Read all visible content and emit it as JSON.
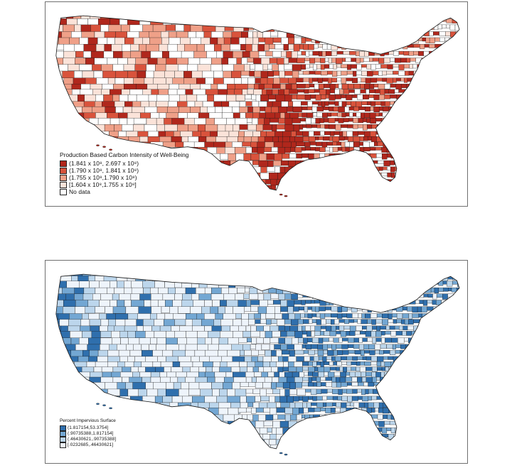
{
  "maps": [
    {
      "legend_title": "Production Based Carbon Intensity of Well-Being",
      "legend_items": [
        {
          "label": "(1.841 x 10⁸, 2.697 x 10⁸)",
          "color": "#b0271c"
        },
        {
          "label": "(1.790 x 10⁸, 1.841 x 10⁸)",
          "color": "#d9533c"
        },
        {
          "label": "(1.755 x 10⁸,1.790 x 10⁸)",
          "color": "#efa088"
        },
        {
          "label": "[1.604 x 10⁸,1.755 x 10⁸]",
          "color": "#fbe3d9"
        },
        {
          "label": "No data",
          "color": "#ffffff"
        }
      ]
    },
    {
      "legend_title": "Percent Impervious Surface",
      "legend_items": [
        {
          "label": "(1.817154,53.3754]",
          "color": "#2f6fad"
        },
        {
          "label": "(.90735388,1.817154]",
          "color": "#73a7d3"
        },
        {
          "label": "(.46430621,.90735388]",
          "color": "#bcd6ec"
        },
        {
          "label": "[.0232685,.46430621]",
          "color": "#eef4fb"
        }
      ]
    }
  ],
  "theme": {
    "county_border": "#1a1a1a",
    "panel_border": "#6f6f6f"
  }
}
